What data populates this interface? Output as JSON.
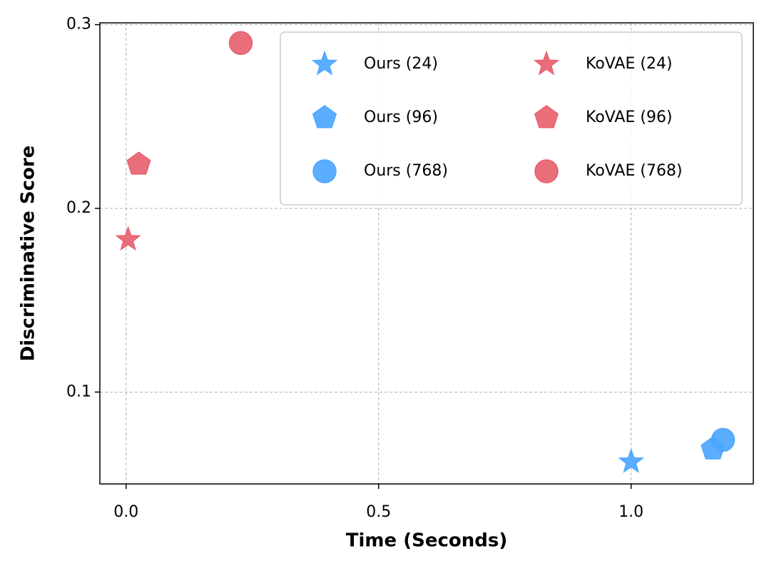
{
  "chart_data": {
    "type": "scatter",
    "xlabel": "Time (Seconds)",
    "ylabel": "Discriminative Score",
    "xlim": [
      -0.052,
      1.242
    ],
    "ylim": [
      0.05,
      0.301
    ],
    "xticks": [
      {
        "value": 0,
        "label": "0.0"
      },
      {
        "value": 0.5,
        "label": "0.5"
      },
      {
        "value": 1,
        "label": "1.0"
      }
    ],
    "yticks": [
      0.1,
      0.2,
      0.3
    ],
    "grid": true,
    "legend": "upper right",
    "series": [
      {
        "name": "Ours (24)",
        "color": "#4da6ff",
        "marker": "star",
        "x": [
          1.0
        ],
        "values": [
          0.062
        ]
      },
      {
        "name": "Ours (96)",
        "color": "#4da6ff",
        "marker": "pentagon",
        "x": [
          1.162
        ],
        "values": [
          0.069
        ]
      },
      {
        "name": "Ours (768)",
        "color": "#4da6ff",
        "marker": "circle",
        "x": [
          1.182
        ],
        "values": [
          0.074
        ]
      },
      {
        "name": "KoVAE (24)",
        "color": "#e8616f",
        "marker": "star",
        "x": [
          0.004
        ],
        "values": [
          0.183
        ]
      },
      {
        "name": "KoVAE (96)",
        "color": "#e8616f",
        "marker": "pentagon",
        "x": [
          0.025
        ],
        "values": [
          0.224
        ]
      },
      {
        "name": "KoVAE (768)",
        "color": "#e8616f",
        "marker": "circle",
        "x": [
          0.227
        ],
        "values": [
          0.29
        ]
      }
    ]
  }
}
